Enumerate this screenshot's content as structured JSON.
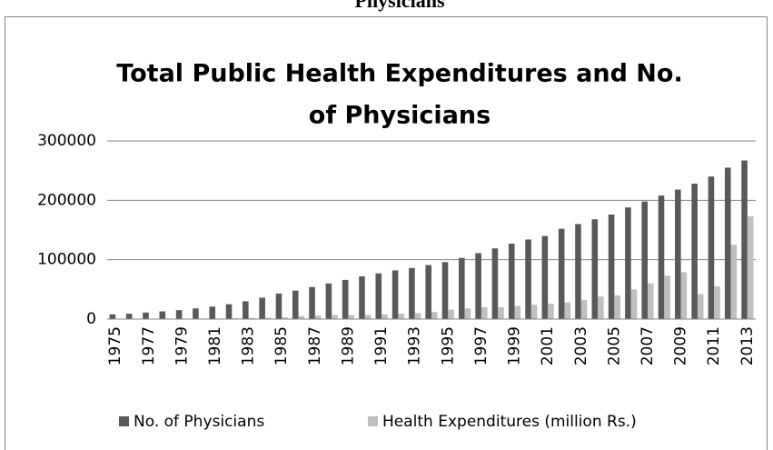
{
  "page_heading": "Physicians",
  "chart_data": {
    "type": "bar",
    "title": [
      "Total Public Health Expenditures and No.",
      "of Physicians"
    ],
    "categories": [
      "1975",
      null,
      "1977",
      null,
      "1979",
      null,
      "1981",
      null,
      "1983",
      null,
      "1985",
      null,
      "1987",
      null,
      "1989",
      null,
      "1991",
      null,
      "1993",
      null,
      "1995",
      null,
      "1997",
      null,
      "1999",
      null,
      "2001",
      null,
      "2003",
      null,
      "2005",
      null,
      "2007",
      null,
      "2009",
      null,
      "2011",
      null,
      "2013"
    ],
    "series": [
      {
        "name": "No. of Physicians",
        "color": "#595959",
        "values": [
          8000,
          9000,
          11000,
          13000,
          15000,
          18000,
          21000,
          25000,
          30000,
          36000,
          43000,
          48000,
          54000,
          60000,
          66000,
          72000,
          77000,
          82000,
          86000,
          91000,
          96000,
          103000,
          111000,
          119000,
          127000,
          134000,
          140000,
          152000,
          160000,
          168000,
          176000,
          188000,
          198000,
          208000,
          218000,
          228000,
          240000,
          255000,
          267000
        ]
      },
      {
        "name": "Health Expenditures (million Rs.)",
        "color": "#bfbfbf",
        "values": [
          500,
          600,
          700,
          800,
          900,
          1000,
          1200,
          1500,
          1800,
          2200,
          3000,
          5000,
          6000,
          7000,
          7000,
          7000,
          8000,
          9000,
          10000,
          12000,
          16000,
          18000,
          20000,
          20000,
          22000,
          24000,
          26000,
          28000,
          32000,
          38000,
          40000,
          50000,
          60000,
          73000,
          79000,
          42000,
          55000,
          125000,
          173000
        ]
      }
    ],
    "ylim": [
      0,
      300000
    ],
    "yticks": [
      0,
      100000,
      200000,
      300000
    ],
    "grid": true,
    "legend": "bottom"
  }
}
